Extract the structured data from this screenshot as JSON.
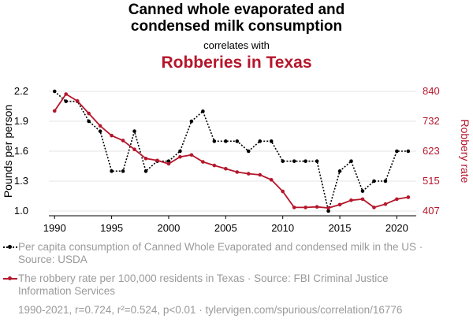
{
  "title_line1": "Canned whole evaporated and",
  "title_line2": "condensed milk consumption",
  "subtitle": "correlates with",
  "title2": "Robberies in Texas",
  "colors": {
    "series1": "#000000",
    "series2": "#b5162b",
    "grid": "#e6e6e6",
    "legend_text": "#9a9a9a"
  },
  "legend": [
    {
      "text": "Per capita consumption of Canned Whole Evaporated and condensed milk in the US · Source: USDA"
    },
    {
      "text": "The robbery rate per 100,000 residents in Texas · Source: FBI Criminal Justice Information Services"
    }
  ],
  "footer": "1990-2021, r=0.724, r²=0.524, p<0.01 · tylervigen.com/spurious/correlation/16776",
  "chart_data": {
    "type": "line",
    "x": [
      1990,
      1991,
      1992,
      1993,
      1994,
      1995,
      1996,
      1997,
      1998,
      1999,
      2000,
      2001,
      2002,
      2003,
      2004,
      2005,
      2006,
      2007,
      2008,
      2009,
      2010,
      2011,
      2012,
      2013,
      2014,
      2015,
      2016,
      2017,
      2018,
      2019,
      2020,
      2021
    ],
    "xticks": [
      1990,
      1995,
      2000,
      2005,
      2010,
      2015,
      2020
    ],
    "xlim": [
      1989.5,
      2021.7
    ],
    "y_left": {
      "label": "Pounds per person",
      "ticks": [
        "1.0",
        "1.3",
        "1.6",
        "1.9",
        "2.2"
      ],
      "lim": [
        1.0,
        2.2
      ]
    },
    "y_right": {
      "label": "Robbery rate",
      "ticks": [
        "407",
        "515",
        "623",
        "732",
        "840"
      ],
      "lim": [
        407,
        840
      ]
    },
    "series": [
      {
        "axis": "left",
        "style": "dotted",
        "values": [
          2.2,
          2.1,
          2.1,
          1.9,
          1.8,
          1.4,
          1.4,
          1.8,
          1.4,
          1.5,
          1.5,
          1.6,
          1.9,
          2.0,
          1.7,
          1.7,
          1.7,
          1.6,
          1.7,
          1.7,
          1.5,
          1.5,
          1.5,
          1.5,
          1.0,
          1.4,
          1.5,
          1.2,
          1.3,
          1.3,
          1.6,
          1.6
        ]
      },
      {
        "axis": "right",
        "style": "solid",
        "values": [
          769,
          830,
          805,
          760,
          715,
          680,
          662,
          630,
          597,
          590,
          578,
          603,
          610,
          585,
          572,
          560,
          548,
          542,
          538,
          520,
          478,
          420,
          420,
          422,
          418,
          430,
          446,
          450,
          420,
          432,
          450,
          457
        ]
      }
    ],
    "grid": true
  }
}
